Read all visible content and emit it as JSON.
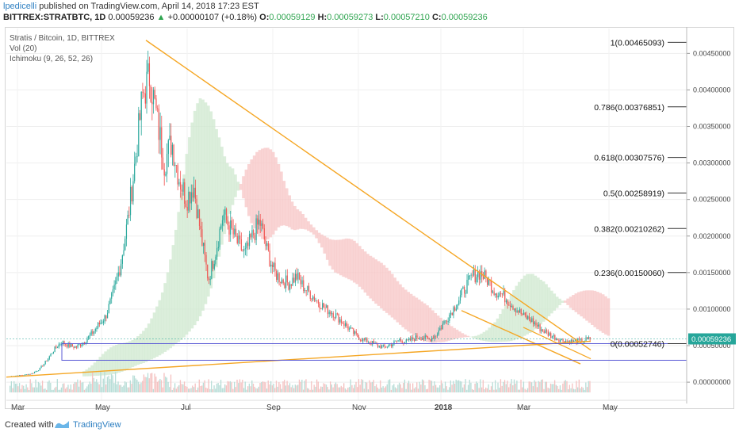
{
  "header": {
    "author": "lpedicelli",
    "published_text": "published on TradingView.com, April 14, 2018 17:23 EST",
    "symbol": "BITTREX:STRATBTC, 1D",
    "last": "0.00059236",
    "change_arrow": "▲",
    "change": "+0.00000107 (+0.18%)",
    "o_label": "O:",
    "o_val": "0.00059129",
    "h_label": "H:",
    "h_val": "0.00059273",
    "l_label": "L:",
    "l_val": "0.00057210",
    "c_label": "C:",
    "c_val": "0.00059236"
  },
  "legend": {
    "title": "Stratis / Bitcoin, 1D, BITTREX",
    "vol": "Vol (20)",
    "ichimoku": "Ichimoku (9, 26, 52, 26)"
  },
  "footer": {
    "created_with": "Created with",
    "brand": "TradingView"
  },
  "colors": {
    "up": "#26a69a",
    "down": "#ef5350",
    "fib": "#333333",
    "trendline": "#f5a623",
    "range_box": "#5a5ad6",
    "cloud_bull": "#cfe8cf",
    "cloud_bear": "#f7c6c6",
    "price_tag": "#26a69a"
  },
  "chart_data": {
    "type": "candlestick",
    "x_labels": [
      "Mar",
      "May",
      "Jul",
      "Sep",
      "Nov",
      "2018",
      "Mar",
      "May"
    ],
    "y_ticks": [
      "0.00450000",
      "0.00400000",
      "0.00350000",
      "0.00300000",
      "0.00250000",
      "0.00200000",
      "0.00150000",
      "0.00100000",
      "0.00050000",
      "0.00000000"
    ],
    "ylim": [
      -0.00014,
      0.00484
    ],
    "last_price": 0.00059236,
    "last_price_label": "0.00059236",
    "fib_levels": [
      {
        "label": "1(0.00465093)",
        "value": 0.00465093
      },
      {
        "label": "0.786(0.00376851)",
        "value": 0.00376851
      },
      {
        "label": "0.618(0.00307576)",
        "value": 0.00307576
      },
      {
        "label": "0.5(0.00258919)",
        "value": 0.00258919
      },
      {
        "label": "0.382(0.00210262)",
        "value": 0.00210262
      },
      {
        "label": "0.236(0.00150060)",
        "value": 0.0015006
      },
      {
        "label": "0(0.00052746)",
        "value": 0.00052746
      }
    ],
    "price_path": [
      8e-05,
      9e-05,
      0.0001,
      0.00012,
      0.00018,
      0.0003,
      0.00045,
      0.00055,
      0.0005,
      0.00048,
      0.00055,
      0.00065,
      0.00078,
      0.0009,
      0.0012,
      0.0016,
      0.0022,
      0.003,
      0.0039,
      0.0042,
      0.0036,
      0.003,
      0.0033,
      0.0028,
      0.0025,
      0.0027,
      0.002,
      0.0014,
      0.0018,
      0.0023,
      0.0021,
      0.0019,
      0.00175,
      0.002,
      0.0022,
      0.0018,
      0.0015,
      0.0014,
      0.00135,
      0.00145,
      0.0013,
      0.0012,
      0.0011,
      0.001,
      0.00095,
      0.00085,
      0.00075,
      0.00065,
      0.00058,
      0.00055,
      0.0005,
      0.00048,
      0.00052,
      0.00058,
      0.00055,
      0.0006,
      0.00062,
      0.00058,
      0.00065,
      0.0008,
      0.00095,
      0.0011,
      0.0013,
      0.00145,
      0.0015,
      0.0014,
      0.00125,
      0.0012,
      0.0011,
      0.001,
      0.0009,
      0.00085,
      0.00075,
      0.00068,
      0.00062,
      0.00058,
      0.00056,
      0.00055,
      0.00057,
      0.00059
    ]
  }
}
